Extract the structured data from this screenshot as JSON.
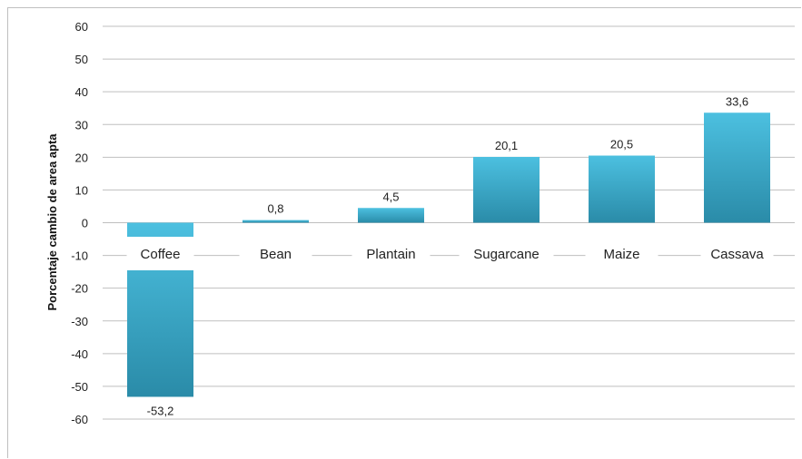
{
  "chart_data": {
    "type": "bar",
    "categories": [
      "Coffee",
      "Bean",
      "Plantain",
      "Sugarcane",
      "Maize",
      "Cassava"
    ],
    "values": [
      -53.2,
      0.8,
      4.5,
      20.1,
      20.5,
      33.6
    ],
    "data_labels": [
      "-53,2",
      "0,8",
      "4,5",
      "20,1",
      "20,5",
      "33,6"
    ],
    "title": "",
    "xlabel": "",
    "ylabel": "Porcentaje cambio de area apta",
    "ylim": [
      -60,
      60
    ],
    "yticks": [
      60,
      50,
      40,
      30,
      20,
      10,
      0,
      -10,
      -20,
      -30,
      -40,
      -50,
      -60
    ],
    "grid": true,
    "legend": "none",
    "colors": {
      "bar_top": "#4cc0e0",
      "bar_bottom": "#2a8ba8",
      "grid": "#bfbfbf",
      "label_box": "#ffffff"
    }
  }
}
